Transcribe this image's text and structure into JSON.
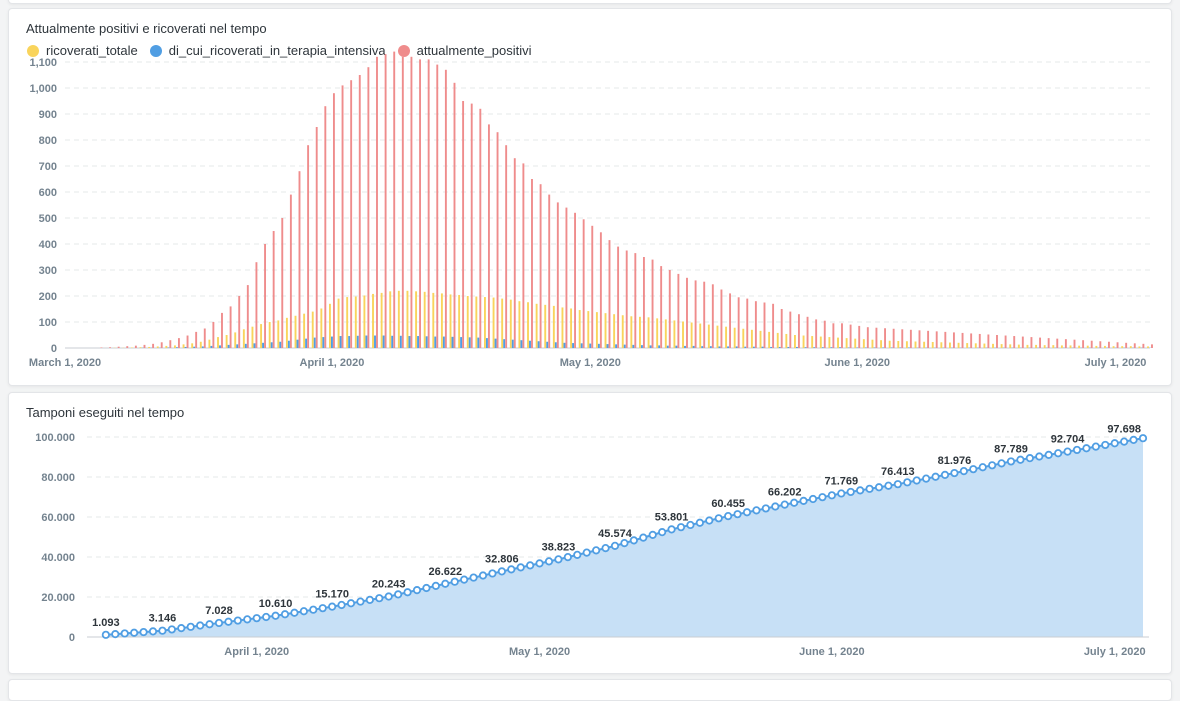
{
  "chart_data": [
    {
      "type": "bar",
      "title": "Attualmente positivi e ricoverati nel tempo",
      "xlabel": "",
      "ylabel": "",
      "ylim": [
        0,
        1150
      ],
      "yticks": [
        0,
        100,
        200,
        300,
        400,
        500,
        600,
        700,
        800,
        900,
        1000,
        1100
      ],
      "ytick_labels": [
        "0",
        "100",
        "200",
        "300",
        "400",
        "500",
        "600",
        "700",
        "800",
        "900",
        "1,000",
        "1,100"
      ],
      "xticks": [
        {
          "date": "2020-03-01",
          "label": "March 1, 2020"
        },
        {
          "date": "2020-04-01",
          "label": "April 1, 2020"
        },
        {
          "date": "2020-05-01",
          "label": "May 1, 2020"
        },
        {
          "date": "2020-06-01",
          "label": "June 1, 2020"
        },
        {
          "date": "2020-07-01",
          "label": "July 1, 2020"
        }
      ],
      "xlim": [
        "2020-03-01",
        "2020-07-05"
      ],
      "grid": true,
      "legend_position": "top-left",
      "start_date": "2020-03-05",
      "series": [
        {
          "name": "ricoverati_totale",
          "color": "#f9d45c",
          "values": [
            0,
            0,
            1,
            1,
            2,
            3,
            4,
            6,
            8,
            10,
            14,
            18,
            24,
            32,
            42,
            50,
            60,
            72,
            82,
            92,
            100,
            106,
            116,
            124,
            132,
            140,
            152,
            170,
            190,
            196,
            198,
            202,
            208,
            212,
            218,
            220,
            220,
            218,
            216,
            212,
            210,
            206,
            204,
            200,
            198,
            196,
            194,
            190,
            186,
            180,
            176,
            170,
            166,
            162,
            156,
            152,
            146,
            142,
            138,
            134,
            130,
            126,
            122,
            120,
            118,
            114,
            110,
            106,
            102,
            98,
            94,
            90,
            86,
            82,
            78,
            74,
            70,
            66,
            62,
            58,
            54,
            50,
            48,
            46,
            44,
            42,
            40,
            38,
            36,
            34,
            32,
            30,
            28,
            27,
            26,
            25,
            24,
            23,
            22,
            21,
            20,
            19,
            18,
            17,
            16,
            15,
            14,
            13,
            12,
            12,
            11,
            11,
            10,
            10,
            9,
            9,
            8,
            8,
            7,
            7,
            7,
            6,
            6
          ]
        },
        {
          "name": "di_cui_ricoverati_in_terapia_intensiva",
          "color": "#509ee3",
          "values": [
            0,
            0,
            0,
            0,
            0,
            1,
            1,
            1,
            2,
            3,
            4,
            5,
            6,
            8,
            10,
            12,
            14,
            16,
            18,
            20,
            22,
            24,
            28,
            32,
            36,
            40,
            42,
            44,
            46,
            46,
            47,
            48,
            48,
            48,
            47,
            47,
            46,
            46,
            45,
            44,
            44,
            43,
            42,
            41,
            40,
            38,
            36,
            34,
            32,
            30,
            28,
            26,
            24,
            22,
            20,
            19,
            18,
            17,
            16,
            15,
            14,
            13,
            12,
            11,
            10,
            10,
            9,
            9,
            8,
            8,
            7,
            7,
            6,
            6,
            6,
            5,
            5,
            5,
            4,
            4,
            4,
            4,
            3,
            3,
            3,
            3,
            3,
            2,
            2,
            2,
            2,
            2,
            2,
            2,
            2,
            1,
            1,
            1,
            1,
            1,
            1,
            1,
            1,
            1,
            1,
            1,
            1,
            1,
            1,
            1,
            1,
            1,
            1,
            1,
            1,
            1,
            1,
            1,
            1,
            1,
            1,
            1,
            1
          ]
        },
        {
          "name": "attualmente_positivi",
          "color": "#ef8c8c",
          "values": [
            2,
            3,
            5,
            7,
            9,
            12,
            16,
            22,
            30,
            38,
            48,
            62,
            75,
            100,
            135,
            160,
            200,
            242,
            330,
            400,
            450,
            500,
            590,
            680,
            780,
            850,
            930,
            980,
            1010,
            1030,
            1050,
            1080,
            1120,
            1130,
            1140,
            1120,
            1120,
            1110,
            1110,
            1090,
            1070,
            1020,
            950,
            940,
            920,
            860,
            830,
            780,
            730,
            710,
            650,
            630,
            590,
            560,
            540,
            520,
            495,
            470,
            445,
            415,
            390,
            375,
            365,
            350,
            340,
            315,
            300,
            285,
            270,
            260,
            255,
            245,
            225,
            210,
            195,
            190,
            180,
            175,
            170,
            150,
            140,
            130,
            120,
            110,
            105,
            95,
            95,
            90,
            85,
            80,
            78,
            76,
            74,
            72,
            70,
            68,
            66,
            64,
            62,
            60,
            58,
            56,
            54,
            52,
            50,
            48,
            46,
            44,
            42,
            40,
            38,
            36,
            34,
            32,
            30,
            28,
            26,
            24,
            22,
            20,
            18,
            16,
            14
          ]
        }
      ]
    },
    {
      "type": "area",
      "title": "Tamponi eseguiti nel tempo",
      "xlabel": "",
      "ylabel": "",
      "ylim": [
        0,
        100000
      ],
      "yticks": [
        0,
        20000,
        40000,
        60000,
        80000,
        100000
      ],
      "ytick_labels": [
        "0",
        "20.000",
        "40.000",
        "60.000",
        "80.000",
        "100.000"
      ],
      "xticks": [
        {
          "date": "2020-04-01",
          "label": "April 1, 2020"
        },
        {
          "date": "2020-05-01",
          "label": "May 1, 2020"
        },
        {
          "date": "2020-06-01",
          "label": "June 1, 2020"
        },
        {
          "date": "2020-07-01",
          "label": "July 1, 2020"
        }
      ],
      "xlim": [
        "2020-03-16",
        "2020-07-04"
      ],
      "grid": true,
      "series_name": "tamponi",
      "color": "#509ee3",
      "fill_color": "#c7e0f6",
      "start_date": "2020-03-16",
      "end_date": "2020-07-04",
      "labeled_points": [
        {
          "date": "2020-03-16",
          "value": 1093,
          "label": "1.093"
        },
        {
          "date": "2020-03-22",
          "value": 3146,
          "label": "3.146"
        },
        {
          "date": "2020-03-28",
          "value": 7028,
          "label": "7.028"
        },
        {
          "date": "2020-04-03",
          "value": 10610,
          "label": "10.610"
        },
        {
          "date": "2020-04-09",
          "value": 15170,
          "label": "15.170"
        },
        {
          "date": "2020-04-15",
          "value": 20243,
          "label": "20.243"
        },
        {
          "date": "2020-04-21",
          "value": 26622,
          "label": "26.622"
        },
        {
          "date": "2020-04-27",
          "value": 32806,
          "label": "32.806"
        },
        {
          "date": "2020-05-03",
          "value": 38823,
          "label": "38.823"
        },
        {
          "date": "2020-05-09",
          "value": 45574,
          "label": "45.574"
        },
        {
          "date": "2020-05-15",
          "value": 53801,
          "label": "53.801"
        },
        {
          "date": "2020-05-21",
          "value": 60455,
          "label": "60.455"
        },
        {
          "date": "2020-05-27",
          "value": 66202,
          "label": "66.202"
        },
        {
          "date": "2020-06-02",
          "value": 71769,
          "label": "71.769"
        },
        {
          "date": "2020-06-08",
          "value": 76413,
          "label": "76.413"
        },
        {
          "date": "2020-06-14",
          "value": 81976,
          "label": "81.976"
        },
        {
          "date": "2020-06-20",
          "value": 87789,
          "label": "87.789"
        },
        {
          "date": "2020-06-26",
          "value": 92704,
          "label": "92.704"
        },
        {
          "date": "2020-07-02",
          "value": 97698,
          "label": "97.698"
        }
      ],
      "last_value": 99400
    }
  ]
}
